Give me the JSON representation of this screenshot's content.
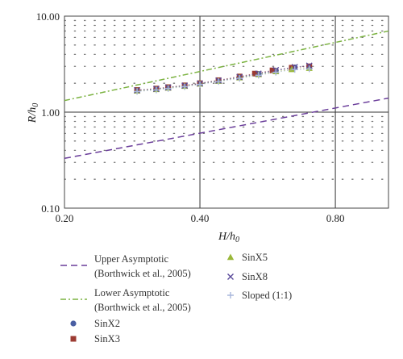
{
  "chart_data": {
    "type": "scatter",
    "title": "",
    "xlabel": "H/h",
    "xlabel_sub": "0",
    "ylabel": "R/h",
    "ylabel_sub": "0",
    "x_scale": "log",
    "y_scale": "log",
    "xlim": [
      0.2,
      1.05
    ],
    "ylim": [
      0.1,
      10
    ],
    "x_ticks": [
      0.2,
      0.4,
      0.8
    ],
    "x_tick_labels": [
      "0.20",
      "0.40",
      "0.80"
    ],
    "y_ticks": [
      0.1,
      1,
      10
    ],
    "y_tick_labels": [
      "0.10",
      "1.00",
      "10.00"
    ],
    "grid": "major solid, minor dotted",
    "legend_position": "below",
    "lines": [
      {
        "name": "Upper Asymptotic\n(Borthwick et al., 2005)",
        "color": "#6a3d9a",
        "dash": "8,5",
        "x": [
          0.2,
          1.05
        ],
        "y": [
          0.33,
          1.4
        ]
      },
      {
        "name": "Lower Asymptotic\n(Borthwick et al., 2005)",
        "color": "#7cb342",
        "dash": "7,3,2,3",
        "x": [
          0.2,
          1.05
        ],
        "y": [
          1.32,
          7.0
        ]
      }
    ],
    "series": [
      {
        "name": "SinX2",
        "marker": "circle",
        "color": "#4a5fa3",
        "x": [
          0.29,
          0.32,
          0.34,
          0.37,
          0.4,
          0.44,
          0.49,
          0.54,
          0.59,
          0.65
        ],
        "y": [
          1.68,
          1.74,
          1.8,
          1.88,
          1.98,
          2.12,
          2.3,
          2.5,
          2.7,
          2.92
        ]
      },
      {
        "name": "SinX3",
        "marker": "square",
        "color": "#9c3b32",
        "x": [
          0.29,
          0.32,
          0.34,
          0.37,
          0.4,
          0.44,
          0.49,
          0.53,
          0.58,
          0.64,
          0.7
        ],
        "y": [
          1.7,
          1.76,
          1.82,
          1.9,
          2.0,
          2.15,
          2.35,
          2.52,
          2.72,
          2.9,
          3.0
        ]
      },
      {
        "name": "SinX5",
        "marker": "triangle",
        "color": "#9ab83a",
        "x": [
          0.29,
          0.32,
          0.34,
          0.37,
          0.4,
          0.44,
          0.49,
          0.54,
          0.59,
          0.64,
          0.7
        ],
        "y": [
          1.66,
          1.72,
          1.78,
          1.86,
          1.96,
          2.1,
          2.28,
          2.46,
          2.64,
          2.78,
          2.86
        ]
      },
      {
        "name": "SinX8",
        "marker": "x",
        "color": "#5a4a9a",
        "x": [
          0.29,
          0.32,
          0.34,
          0.37,
          0.4,
          0.44,
          0.49,
          0.54,
          0.59,
          0.65,
          0.7
        ],
        "y": [
          1.69,
          1.75,
          1.81,
          1.89,
          1.99,
          2.13,
          2.32,
          2.52,
          2.74,
          2.95,
          3.05
        ]
      },
      {
        "name": "Sloped (1:1)",
        "marker": "plus",
        "color": "#a9b7dc",
        "x": [
          0.29,
          0.32,
          0.34,
          0.37,
          0.4,
          0.44,
          0.49,
          0.54,
          0.59,
          0.65,
          0.7
        ],
        "y": [
          1.64,
          1.7,
          1.76,
          1.84,
          1.94,
          2.08,
          2.25,
          2.42,
          2.6,
          2.78,
          2.82
        ]
      }
    ]
  }
}
